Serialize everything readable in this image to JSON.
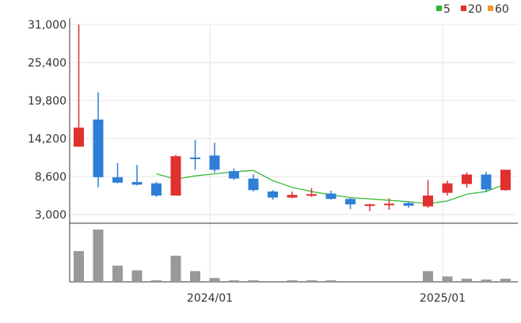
{
  "colors": {
    "up": "#e03030",
    "down": "#2f7fd6",
    "ma5": "#2db52d",
    "ma20": "#e03030",
    "ma60": "#f0962a",
    "volume": "#999999",
    "grid": "#e6e6e6",
    "axis": "#333333"
  },
  "chart_data": {
    "type": "candlestick",
    "legend": {
      "position": "top-right",
      "items": [
        "5",
        "20",
        "60"
      ]
    },
    "price_ticks": [
      "31,000",
      "25,400",
      "19,800",
      "14,200",
      "8,600",
      "3,000"
    ],
    "price_tick_values": [
      31000,
      25400,
      19800,
      14200,
      8600,
      3000
    ],
    "ylim": [
      3000,
      31000
    ],
    "x_ticks": [
      {
        "label": "2024/01",
        "index": 7
      },
      {
        "label": "2025/01",
        "index": 19
      }
    ],
    "grid": true,
    "candles": [
      {
        "o": 13000,
        "h": 31000,
        "l": 13000,
        "c": 15800
      },
      {
        "o": 17000,
        "h": 21000,
        "l": 7000,
        "c": 8500
      },
      {
        "o": 8500,
        "h": 10600,
        "l": 7600,
        "c": 7700
      },
      {
        "o": 7800,
        "h": 10300,
        "l": 7300,
        "c": 7400
      },
      {
        "o": 7600,
        "h": 7800,
        "l": 5600,
        "c": 5800
      },
      {
        "o": 5800,
        "h": 11800,
        "l": 5800,
        "c": 11600
      },
      {
        "o": 11400,
        "h": 14000,
        "l": 9600,
        "c": 11200
      },
      {
        "o": 11700,
        "h": 13600,
        "l": 9200,
        "c": 9600
      },
      {
        "o": 9400,
        "h": 9800,
        "l": 8100,
        "c": 8300
      },
      {
        "o": 8300,
        "h": 8900,
        "l": 6400,
        "c": 6600
      },
      {
        "o": 6400,
        "h": 6600,
        "l": 5200,
        "c": 5500
      },
      {
        "o": 5500,
        "h": 6400,
        "l": 5400,
        "c": 5900
      },
      {
        "o": 5800,
        "h": 6900,
        "l": 5600,
        "c": 6000
      },
      {
        "o": 6100,
        "h": 6500,
        "l": 5200,
        "c": 5300
      },
      {
        "o": 5300,
        "h": 5500,
        "l": 3800,
        "c": 4500
      },
      {
        "o": 4400,
        "h": 4600,
        "l": 3500,
        "c": 4500
      },
      {
        "o": 4400,
        "h": 5400,
        "l": 3700,
        "c": 4600
      },
      {
        "o": 4700,
        "h": 4900,
        "l": 4000,
        "c": 4300
      },
      {
        "o": 4200,
        "h": 8100,
        "l": 4000,
        "c": 5800
      },
      {
        "o": 6200,
        "h": 8000,
        "l": 5800,
        "c": 7600
      },
      {
        "o": 7500,
        "h": 9200,
        "l": 7000,
        "c": 8900
      },
      {
        "o": 8900,
        "h": 9300,
        "l": 6300,
        "c": 6700
      },
      {
        "o": 6600,
        "h": 9600,
        "l": 6500,
        "c": 9600
      }
    ],
    "ma5": [
      null,
      null,
      null,
      null,
      9000,
      8200,
      8700,
      9000,
      9300,
      9500,
      8000,
      7000,
      6400,
      5900,
      5500,
      5300,
      5100,
      4900,
      4600,
      5000,
      6000,
      6400,
      7500
    ],
    "volume": [
      40,
      68,
      21,
      15,
      2,
      34,
      14,
      5,
      2,
      2,
      1,
      2,
      2,
      2,
      1,
      0,
      1,
      1,
      14,
      7,
      4,
      3,
      4
    ],
    "volume_max": 70
  }
}
